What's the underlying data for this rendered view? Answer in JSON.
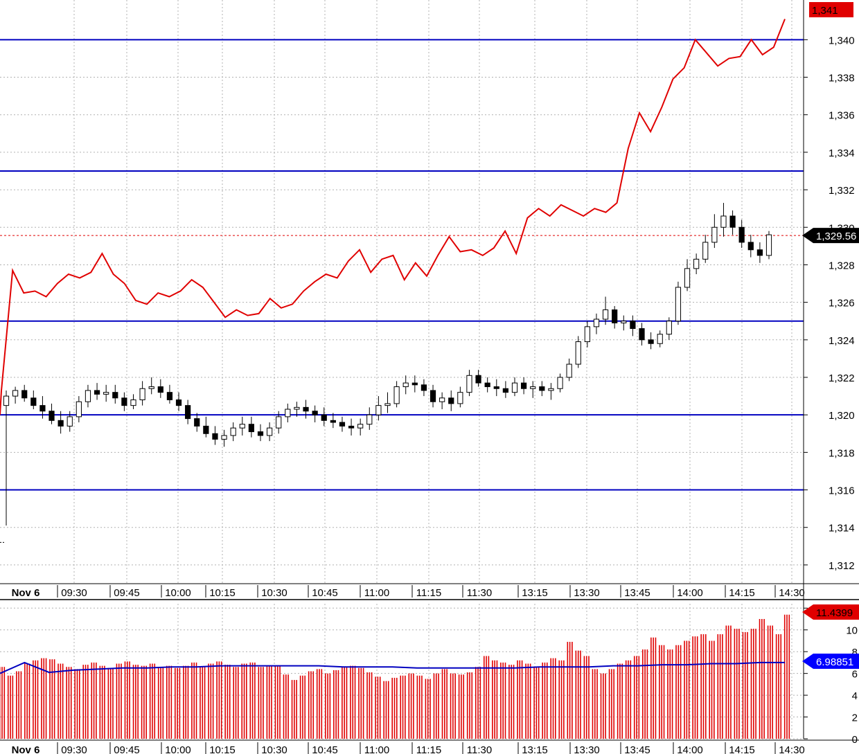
{
  "chart_data": [
    {
      "type": "candlestick",
      "title": "",
      "date_label": "Nov 6",
      "x_ticks": [
        "09:30",
        "09:45",
        "10:00",
        "10:15",
        "10:30",
        "10:45",
        "11:00",
        "11:15",
        "11:30",
        "13:15",
        "13:30",
        "13:45",
        "14:00",
        "14:15",
        "14:30"
      ],
      "y_ticks": [
        "1,312",
        "1,314",
        "1,316",
        "1,318",
        "1,320",
        "1,322",
        "1,324",
        "1,326",
        "1,328",
        "1,330",
        "1,332",
        "1,334",
        "1,336",
        "1,338",
        "1,340"
      ],
      "ylim": [
        1311.0,
        1341.6
      ],
      "grid": true,
      "horizontal_levels": [
        1340.0,
        1333.0,
        1325.0,
        1320.0,
        1316.0
      ],
      "last_price_label": "1,329.56",
      "last_price": 1329.56,
      "red_line_last_label": "1,341",
      "ohlc": [
        [
          1320.5,
          1321.3,
          1314.1,
          1321.0
        ],
        [
          1321.0,
          1321.5,
          1320.6,
          1321.3
        ],
        [
          1321.3,
          1321.6,
          1320.7,
          1320.9
        ],
        [
          1320.9,
          1321.3,
          1320.3,
          1320.5
        ],
        [
          1320.5,
          1321.0,
          1319.8,
          1320.2
        ],
        [
          1320.2,
          1320.6,
          1319.5,
          1319.7
        ],
        [
          1319.7,
          1320.2,
          1319.0,
          1319.4
        ],
        [
          1319.4,
          1320.2,
          1319.1,
          1319.9
        ],
        [
          1319.9,
          1321.0,
          1319.6,
          1320.7
        ],
        [
          1320.7,
          1321.6,
          1320.4,
          1321.3
        ],
        [
          1321.3,
          1321.7,
          1320.8,
          1321.1
        ],
        [
          1321.1,
          1321.6,
          1320.7,
          1321.2
        ],
        [
          1321.2,
          1321.6,
          1320.6,
          1320.9
        ],
        [
          1320.9,
          1321.2,
          1320.2,
          1320.5
        ],
        [
          1320.5,
          1321.1,
          1320.3,
          1320.8
        ],
        [
          1320.8,
          1321.8,
          1320.5,
          1321.4
        ],
        [
          1321.4,
          1322.0,
          1321.1,
          1321.5
        ],
        [
          1321.5,
          1321.9,
          1320.9,
          1321.2
        ],
        [
          1321.2,
          1321.6,
          1320.6,
          1320.8
        ],
        [
          1320.8,
          1321.2,
          1320.2,
          1320.5
        ],
        [
          1320.5,
          1320.8,
          1319.5,
          1319.8
        ],
        [
          1319.8,
          1320.1,
          1319.1,
          1319.4
        ],
        [
          1319.4,
          1319.9,
          1318.8,
          1319.0
        ],
        [
          1319.0,
          1319.4,
          1318.4,
          1318.7
        ],
        [
          1318.7,
          1319.2,
          1318.3,
          1318.9
        ],
        [
          1318.9,
          1319.6,
          1318.6,
          1319.3
        ],
        [
          1319.3,
          1319.9,
          1318.9,
          1319.5
        ],
        [
          1319.5,
          1319.9,
          1318.8,
          1319.1
        ],
        [
          1319.1,
          1319.5,
          1318.6,
          1318.9
        ],
        [
          1318.9,
          1319.6,
          1318.6,
          1319.3
        ],
        [
          1319.3,
          1320.2,
          1319.0,
          1319.9
        ],
        [
          1319.9,
          1320.6,
          1319.6,
          1320.3
        ],
        [
          1320.3,
          1320.7,
          1319.9,
          1320.4
        ],
        [
          1320.4,
          1320.8,
          1319.8,
          1320.2
        ],
        [
          1320.2,
          1320.5,
          1319.6,
          1320.0
        ],
        [
          1320.0,
          1320.4,
          1319.4,
          1319.7
        ],
        [
          1319.7,
          1320.1,
          1319.3,
          1319.6
        ],
        [
          1319.6,
          1319.9,
          1319.1,
          1319.4
        ],
        [
          1319.4,
          1319.8,
          1318.9,
          1319.3
        ],
        [
          1319.3,
          1319.8,
          1318.9,
          1319.5
        ],
        [
          1319.5,
          1320.4,
          1319.2,
          1320.0
        ],
        [
          1320.0,
          1321.0,
          1319.7,
          1320.5
        ],
        [
          1320.5,
          1321.2,
          1320.1,
          1320.6
        ],
        [
          1320.6,
          1321.8,
          1320.4,
          1321.5
        ],
        [
          1321.5,
          1322.1,
          1321.1,
          1321.7
        ],
        [
          1321.7,
          1322.1,
          1321.2,
          1321.6
        ],
        [
          1321.6,
          1321.9,
          1321.0,
          1321.3
        ],
        [
          1321.3,
          1321.6,
          1320.4,
          1320.7
        ],
        [
          1320.7,
          1321.2,
          1320.3,
          1320.9
        ],
        [
          1320.9,
          1321.3,
          1320.2,
          1320.6
        ],
        [
          1320.6,
          1321.5,
          1320.4,
          1321.2
        ],
        [
          1321.2,
          1322.4,
          1321.0,
          1322.1
        ],
        [
          1322.1,
          1322.4,
          1321.5,
          1321.7
        ],
        [
          1321.7,
          1322.0,
          1321.2,
          1321.5
        ],
        [
          1321.5,
          1321.9,
          1321.0,
          1321.4
        ],
        [
          1321.4,
          1321.8,
          1320.9,
          1321.2
        ],
        [
          1321.2,
          1322.0,
          1321.0,
          1321.7
        ],
        [
          1321.7,
          1322.0,
          1321.1,
          1321.4
        ],
        [
          1321.4,
          1321.8,
          1320.9,
          1321.5
        ],
        [
          1321.5,
          1321.8,
          1321.0,
          1321.3
        ],
        [
          1321.3,
          1321.7,
          1320.8,
          1321.4
        ],
        [
          1321.4,
          1322.2,
          1321.2,
          1322.0
        ],
        [
          1322.0,
          1323.0,
          1321.8,
          1322.7
        ],
        [
          1322.7,
          1324.2,
          1322.5,
          1323.9
        ],
        [
          1323.9,
          1325.0,
          1323.6,
          1324.7
        ],
        [
          1324.7,
          1325.4,
          1324.3,
          1325.1
        ],
        [
          1325.1,
          1326.3,
          1324.8,
          1325.6
        ],
        [
          1325.6,
          1325.8,
          1324.6,
          1324.9
        ],
        [
          1324.9,
          1325.3,
          1324.5,
          1325.0
        ],
        [
          1325.0,
          1325.3,
          1324.2,
          1324.6
        ],
        [
          1324.6,
          1324.9,
          1323.7,
          1324.0
        ],
        [
          1324.0,
          1324.4,
          1323.5,
          1323.8
        ],
        [
          1323.8,
          1324.5,
          1323.6,
          1324.3
        ],
        [
          1324.3,
          1325.2,
          1324.0,
          1325.0
        ],
        [
          1325.0,
          1327.1,
          1324.8,
          1326.8
        ],
        [
          1326.8,
          1328.3,
          1326.6,
          1327.8
        ],
        [
          1327.8,
          1328.6,
          1327.5,
          1328.3
        ],
        [
          1328.3,
          1329.6,
          1328.1,
          1329.2
        ],
        [
          1329.2,
          1330.7,
          1328.9,
          1330.0
        ],
        [
          1330.0,
          1331.3,
          1329.5,
          1330.6
        ],
        [
          1330.6,
          1330.9,
          1329.6,
          1330.0
        ],
        [
          1330.0,
          1330.4,
          1328.9,
          1329.2
        ],
        [
          1329.2,
          1329.6,
          1328.4,
          1328.8
        ],
        [
          1328.8,
          1329.2,
          1328.1,
          1328.5
        ],
        [
          1328.5,
          1329.8,
          1328.3,
          1329.6
        ]
      ],
      "red_line": [
        1321.3,
        1327.7,
        1326.5,
        1326.6,
        1326.3,
        1327.0,
        1327.5,
        1327.3,
        1327.6,
        1328.6,
        1327.5,
        1327.0,
        1326.1,
        1325.9,
        1326.5,
        1326.3,
        1326.6,
        1327.2,
        1326.8,
        1326.0,
        1325.2,
        1325.6,
        1325.3,
        1325.4,
        1326.2,
        1325.7,
        1325.9,
        1326.6,
        1327.1,
        1327.5,
        1327.3,
        1328.2,
        1328.8,
        1327.6,
        1328.3,
        1328.5,
        1327.2,
        1328.1,
        1327.4,
        1328.5,
        1329.5,
        1328.7,
        1328.8,
        1328.5,
        1328.9,
        1329.8,
        1328.6,
        1330.5,
        1331.0,
        1330.6,
        1331.2,
        1330.9,
        1330.6,
        1331.0,
        1330.8,
        1331.3,
        1334.2,
        1336.1,
        1335.1,
        1336.4,
        1337.9,
        1338.5,
        1340.0,
        1339.3,
        1338.6,
        1339.0,
        1339.1,
        1340.0,
        1339.2,
        1339.6,
        1341.1
      ]
    },
    {
      "type": "bar",
      "title": "",
      "date_label": "Nov 6",
      "x_ticks": [
        "09:30",
        "09:45",
        "10:00",
        "10:15",
        "10:30",
        "10:45",
        "11:00",
        "11:15",
        "11:30",
        "13:15",
        "13:30",
        "13:45",
        "14:00",
        "14:15",
        "14:30"
      ],
      "y_ticks": [
        "0",
        "2",
        "4",
        "6",
        "8",
        "10",
        "12"
      ],
      "ylim": [
        0,
        12.4
      ],
      "grid": true,
      "last_bar_label": "11.4399",
      "last_avg_label": "6.98851",
      "values": [
        6.6,
        5.8,
        6.2,
        6.9,
        7.2,
        7.4,
        7.3,
        6.9,
        6.6,
        6.4,
        6.8,
        7.0,
        6.7,
        6.5,
        6.9,
        7.1,
        6.8,
        6.7,
        6.9,
        6.6,
        6.7,
        6.5,
        6.7,
        7.0,
        6.6,
        6.9,
        7.1,
        6.8,
        6.6,
        6.9,
        7.0,
        6.6,
        6.7,
        6.7,
        5.9,
        5.4,
        5.8,
        6.2,
        6.4,
        6.0,
        6.3,
        6.6,
        6.7,
        6.5,
        6.1,
        5.7,
        5.3,
        5.6,
        5.8,
        6.0,
        5.8,
        5.5,
        6.0,
        6.4,
        6.0,
        5.9,
        6.1,
        6.6,
        7.6,
        7.2,
        7.0,
        6.8,
        7.2,
        6.9,
        6.6,
        7.0,
        7.4,
        7.2,
        8.9,
        8.1,
        7.6,
        6.4,
        6.0,
        6.4,
        6.9,
        7.2,
        7.6,
        8.2,
        9.3,
        8.6,
        8.2,
        8.6,
        9.0,
        9.4,
        9.6,
        9.0,
        9.6,
        10.4,
        10.1,
        9.8,
        10.1,
        11.0,
        10.4,
        9.6,
        11.4
      ],
      "average": [
        6.0,
        7.0,
        6.1,
        6.3,
        6.4,
        6.5,
        6.5,
        6.6,
        6.6,
        6.7,
        6.7,
        6.7,
        6.7,
        6.7,
        6.6,
        6.6,
        6.6,
        6.5,
        6.5,
        6.5,
        6.5,
        6.5,
        6.6,
        6.6,
        6.6,
        6.7,
        6.7,
        6.8,
        6.8,
        6.9,
        6.9,
        7.0,
        7.0
      ]
    }
  ],
  "colors": {
    "candle": "#000000",
    "red_line": "#e00000",
    "level_lines": "#0000c0",
    "volume_bars": "#e00000",
    "average_line": "#0000c0",
    "grid": "#b0b0b0",
    "price_badge": "#000000",
    "red_badge": "#e00000",
    "blue_badge": "#0000ff"
  }
}
